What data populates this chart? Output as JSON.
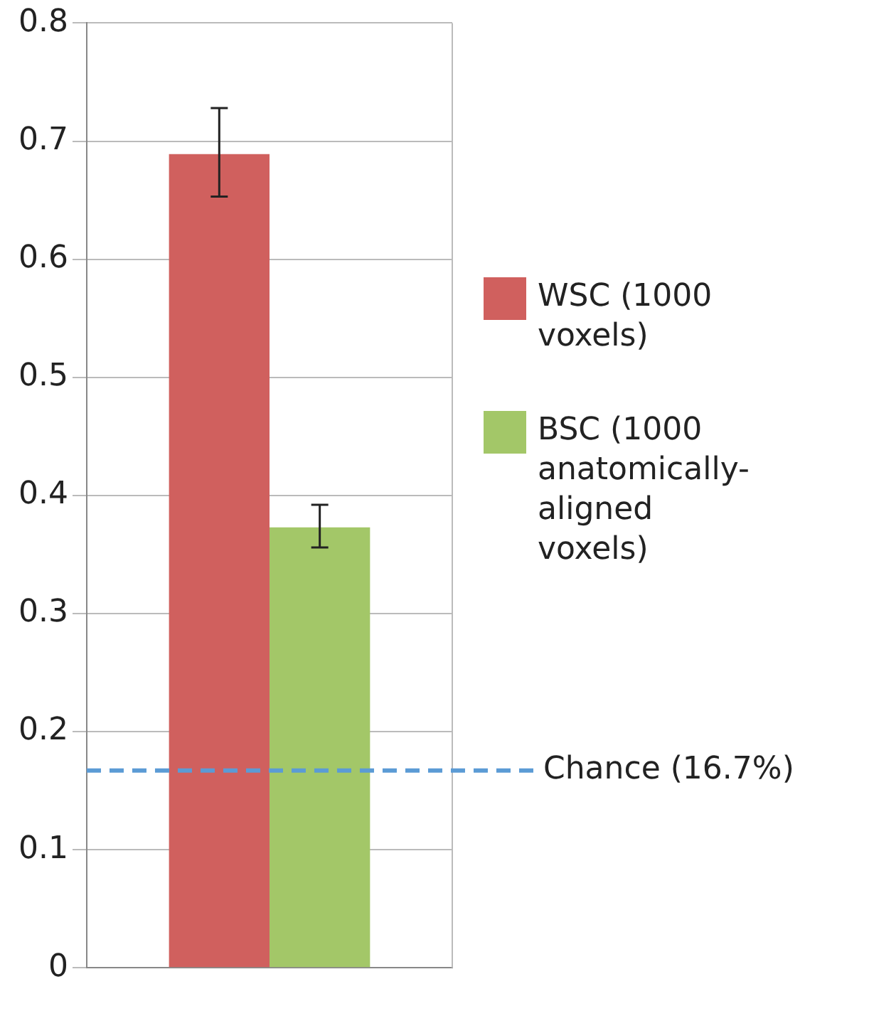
{
  "chart_data": {
    "type": "bar",
    "categories": [
      null
    ],
    "series": [
      {
        "name": "WSC (1000 voxels)",
        "color": "#d0605e",
        "values": [
          0.689
        ],
        "errors": [
          [
            0.653,
            0.728
          ]
        ]
      },
      {
        "name": "BSC (1000 anatomically-aligned voxels)",
        "color": "#a3c768",
        "values": [
          0.373
        ],
        "errors": [
          [
            0.356,
            0.392
          ]
        ]
      }
    ],
    "ylim": [
      0,
      0.8
    ],
    "yticks": [
      {
        "value": 0,
        "label": "0"
      },
      0.1,
      0.2,
      0.3,
      0.4,
      0.5,
      0.6,
      0.7,
      0.8
    ],
    "grid": "y",
    "legend": "right",
    "ref_lines": [
      {
        "axis": "y",
        "value": 0.167,
        "label": "Chance (16.7%)",
        "color": "#5b9bd5",
        "line_style": "dashed"
      }
    ]
  }
}
